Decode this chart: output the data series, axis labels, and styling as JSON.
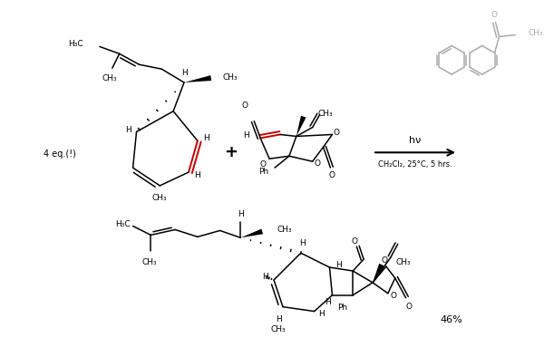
{
  "bg_color": "#ffffff",
  "fig_width": 6.0,
  "fig_height": 3.94,
  "dpi": 100,
  "black": "#000000",
  "red": "#cc0000",
  "gray": "#aaaaaa",
  "arrow_top": "hν",
  "arrow_bottom": "CH₂Cl₂, 25°C, 5 hrs.",
  "label1": "4 eq.(!)",
  "yield": "46%",
  "Ph": "Ph",
  "O_str": "O"
}
